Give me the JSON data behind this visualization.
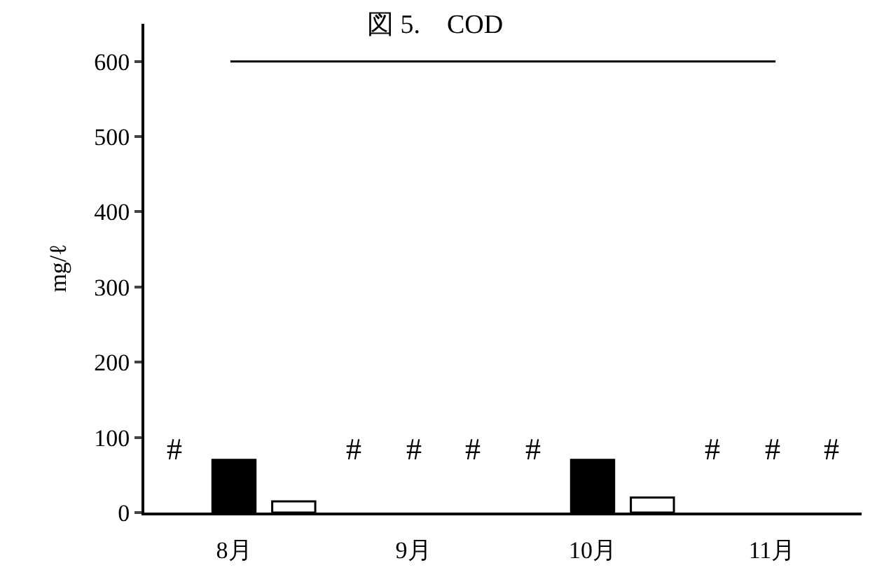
{
  "chart_data": {
    "type": "bar",
    "title": "図 5.　COD",
    "ylabel": "mg/ℓ",
    "categories": [
      null,
      "8月",
      null,
      null,
      "9月",
      null,
      null,
      "10月",
      null,
      null,
      "11月",
      null
    ],
    "values": [
      null,
      70,
      15,
      null,
      null,
      null,
      null,
      70,
      20,
      null,
      null,
      null
    ],
    "colors": [
      "#000000",
      "#000000",
      "#ffffff",
      "#000000",
      "#000000",
      "#000000",
      "#000000",
      "#000000",
      "#ffffff",
      "#000000",
      "#000000",
      "#000000"
    ],
    "ylim": [
      0,
      650
    ],
    "yticks": [
      0,
      100,
      200,
      300,
      400,
      500,
      600
    ],
    "ref_lines": [
      {
        "axis": "y",
        "value": 600,
        "color": "#000000"
      }
    ],
    "annotations": [
      "#",
      "#",
      "#",
      "#",
      "#",
      "#",
      "#",
      "#"
    ]
  }
}
